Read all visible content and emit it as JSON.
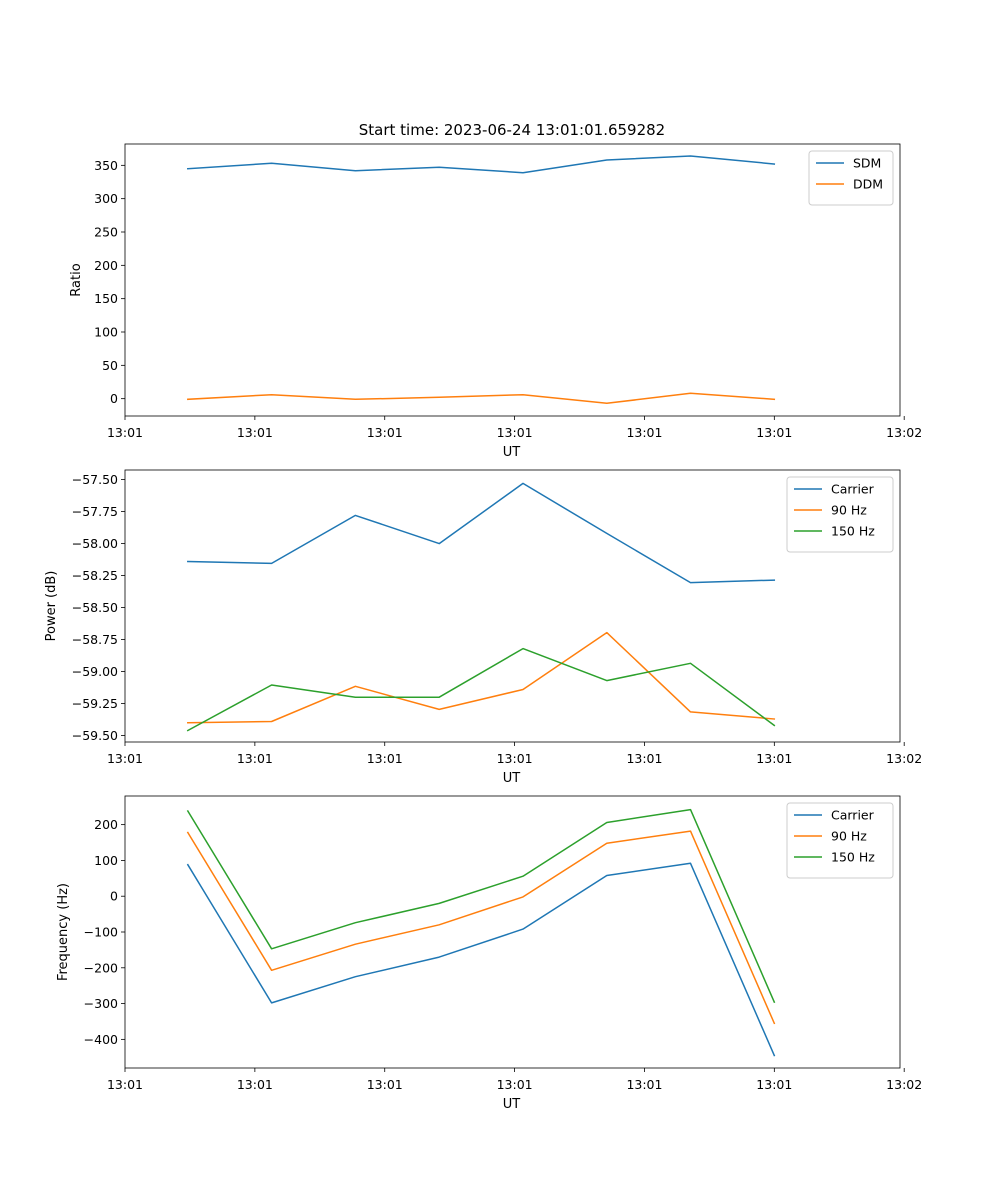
{
  "figure": {
    "title": "Start time: 2023-06-24 13:01:01.659282"
  },
  "colors": {
    "blue": "#1f77b4",
    "orange": "#ff7f0e",
    "green": "#2ca02c"
  },
  "chart_data": [
    {
      "type": "line",
      "title": "Start time: 2023-06-24 13:01:01.659282",
      "xlabel": "UT",
      "ylabel": "Ratio",
      "x": [
        1,
        2,
        3,
        4,
        5,
        6,
        7,
        8
      ],
      "xlim": [
        0.25,
        9.5
      ],
      "xticks": [
        0.25,
        1.8,
        3.35,
        4.9,
        6.45,
        8.0,
        9.55
      ],
      "xtick_labels": [
        "13:01",
        "13:01",
        "13:01",
        "13:01",
        "13:01",
        "13:01",
        "13:02"
      ],
      "ylim": [
        -26,
        382
      ],
      "yticks": [
        0,
        50,
        100,
        150,
        200,
        250,
        300,
        350
      ],
      "ytick_labels": [
        "0",
        "50",
        "100",
        "150",
        "200",
        "250",
        "300",
        "350"
      ],
      "legend_position": "top-right",
      "grid": false,
      "series": [
        {
          "name": "SDM",
          "color": "#1f77b4",
          "values": [
            345,
            353,
            342,
            347,
            339,
            358,
            364,
            352
          ]
        },
        {
          "name": "DDM",
          "color": "#ff7f0e",
          "values": [
            -1,
            6,
            -1,
            2,
            6,
            -7,
            8,
            -1
          ]
        }
      ]
    },
    {
      "type": "line",
      "title": "",
      "xlabel": "UT",
      "ylabel": "Power (dB)",
      "x": [
        1,
        2,
        3,
        4,
        5,
        6,
        7,
        8
      ],
      "xlim": [
        0.25,
        9.5
      ],
      "xticks": [
        0.25,
        1.8,
        3.35,
        4.9,
        6.45,
        8.0,
        9.55
      ],
      "xtick_labels": [
        "13:01",
        "13:01",
        "13:01",
        "13:01",
        "13:01",
        "13:01",
        "13:02"
      ],
      "ylim": [
        -59.55,
        -57.425
      ],
      "yticks": [
        -59.5,
        -59.25,
        -59.0,
        -58.75,
        -58.5,
        -58.25,
        -58.0,
        -57.75,
        -57.5
      ],
      "ytick_labels": [
        "−59.50",
        "−59.25",
        "−59.00",
        "−58.75",
        "−58.50",
        "−58.25",
        "−58.00",
        "−57.75",
        "−57.50"
      ],
      "legend_position": "top-right",
      "grid": false,
      "series": [
        {
          "name": "Carrier",
          "color": "#1f77b4",
          "values": [
            -58.14,
            -58.155,
            -57.78,
            -58.0,
            -57.53,
            -57.92,
            -58.305,
            -58.285
          ]
        },
        {
          "name": "90 Hz",
          "color": "#ff7f0e",
          "values": [
            -59.4,
            -59.39,
            -59.115,
            -59.295,
            -59.14,
            -58.695,
            -59.315,
            -59.37
          ]
        },
        {
          "name": "150 Hz",
          "color": "#2ca02c",
          "values": [
            -59.46,
            -59.105,
            -59.2,
            -59.2,
            -58.82,
            -59.07,
            -58.935,
            -59.42
          ]
        }
      ]
    },
    {
      "type": "line",
      "title": "",
      "xlabel": "UT",
      "ylabel": "Frequency (Hz)",
      "x": [
        1,
        2,
        3,
        4,
        5,
        6,
        7,
        8
      ],
      "xlim": [
        0.25,
        9.5
      ],
      "xticks": [
        0.25,
        1.8,
        3.35,
        4.9,
        6.45,
        8.0,
        9.55
      ],
      "xtick_labels": [
        "13:01",
        "13:01",
        "13:01",
        "13:01",
        "13:01",
        "13:01",
        "13:02"
      ],
      "ylim": [
        -480,
        280
      ],
      "yticks": [
        -400,
        -300,
        -200,
        -100,
        0,
        100,
        200
      ],
      "ytick_labels": [
        "−400",
        "−300",
        "−200",
        "−100",
        "0",
        "100",
        "200"
      ],
      "legend_position": "top-right",
      "grid": false,
      "series": [
        {
          "name": "Carrier",
          "color": "#1f77b4",
          "values": [
            88,
            -298,
            -225,
            -170,
            -92,
            58,
            92,
            -445
          ]
        },
        {
          "name": "90 Hz",
          "color": "#ff7f0e",
          "values": [
            178,
            -207,
            -134,
            -80,
            -2,
            148,
            182,
            -355
          ]
        },
        {
          "name": "150 Hz",
          "color": "#2ca02c",
          "values": [
            238,
            -147,
            -74,
            -20,
            56,
            206,
            242,
            -296
          ]
        }
      ]
    }
  ]
}
